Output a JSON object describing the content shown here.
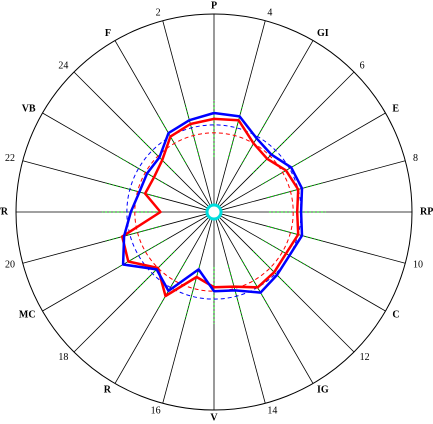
{
  "chart_data": {
    "type": "radar",
    "axes": [
      "P",
      "4",
      "GI",
      "6",
      "E",
      "8",
      "RP",
      "10",
      "C",
      "12",
      "IG",
      "14",
      "V",
      "16",
      "R",
      "18",
      "MC",
      "20",
      "TR",
      "22",
      "VB",
      "24",
      "F",
      "2"
    ],
    "rlim": [
      0,
      100
    ],
    "series": [
      {
        "color": "#0000ff",
        "values": [
          50,
          50,
          43,
          41,
          45,
          46,
          44,
          46,
          44,
          45,
          47,
          41,
          40,
          30,
          46,
          41,
          53,
          47,
          42,
          39,
          39,
          39,
          46,
          48
        ]
      },
      {
        "color": "#ff0000",
        "values": [
          47,
          48,
          40,
          38,
          42,
          44,
          42,
          44,
          42,
          43,
          44,
          39,
          38,
          34,
          49,
          40,
          50,
          48,
          27,
          36,
          35,
          37,
          44,
          46
        ]
      }
    ],
    "rings": [
      {
        "color": "#0000ff",
        "value": 44
      },
      {
        "color": "#ff0000",
        "value": 40
      }
    ]
  }
}
